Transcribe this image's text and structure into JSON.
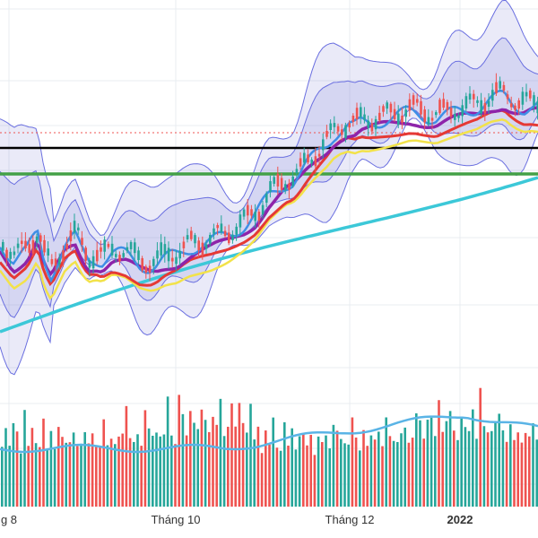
{
  "chart_data": {
    "type": "candlestick",
    "x_ticks": [
      {
        "label": "g 8",
        "bold": false
      },
      {
        "label": "Tháng 10",
        "bold": false
      },
      {
        "label": "Tháng 12",
        "bold": false
      },
      {
        "label": "2022",
        "bold": true
      }
    ],
    "grid": true,
    "colors": {
      "up": "#26a69a",
      "down": "#ef5350",
      "band_fill": "#7b7fd6",
      "band_line": "#6a6fe0",
      "ma_fast": "#3f8fe6",
      "ma_mid": "#8e24aa",
      "ma_slow": "#f2e24a",
      "ma_red": "#e53935",
      "ma_long": "#3cc8d8",
      "h_line_black": "#000000",
      "h_line_green": "#43a047",
      "h_line_dotted": "#ef5350",
      "volume_ma": "#5ab4e6"
    },
    "horizontal_levels": [
      {
        "name": "resistance",
        "style": "solid",
        "color": "black"
      },
      {
        "name": "support",
        "style": "solid",
        "color": "green"
      },
      {
        "name": "last-price",
        "style": "dotted",
        "color": "red"
      }
    ],
    "trend_path": [
      [
        0,
        280
      ],
      [
        8,
        300
      ],
      [
        16,
        290
      ],
      [
        22,
        270
      ],
      [
        26,
        300
      ],
      [
        30,
        315
      ],
      [
        34,
        300
      ],
      [
        38,
        285
      ],
      [
        44,
        275
      ],
      [
        48,
        290
      ],
      [
        52,
        300
      ],
      [
        56,
        298
      ],
      [
        60,
        300
      ],
      [
        63,
        296
      ],
      [
        66,
        292
      ],
      [
        70,
        293
      ],
      [
        74,
        295
      ],
      [
        78,
        300
      ],
      [
        82,
        305
      ],
      [
        88,
        307
      ],
      [
        92,
        305
      ],
      [
        96,
        300
      ],
      [
        100,
        297
      ],
      [
        104,
        295
      ],
      [
        108,
        290
      ],
      [
        112,
        286
      ],
      [
        116,
        284
      ],
      [
        120,
        282
      ],
      [
        124,
        280
      ],
      [
        128,
        277
      ],
      [
        132,
        274
      ],
      [
        136,
        270
      ],
      [
        140,
        265
      ],
      [
        144,
        260
      ],
      [
        150,
        250
      ],
      [
        154,
        240
      ],
      [
        158,
        230
      ],
      [
        164,
        220
      ],
      [
        168,
        214
      ],
      [
        172,
        212
      ],
      [
        176,
        205
      ],
      [
        180,
        195
      ],
      [
        186,
        182
      ],
      [
        192,
        170
      ],
      [
        196,
        160
      ],
      [
        200,
        154
      ],
      [
        205,
        150
      ],
      [
        208,
        152
      ],
      [
        212,
        148
      ],
      [
        216,
        148
      ],
      [
        220,
        146
      ],
      [
        224,
        144
      ],
      [
        228,
        142
      ],
      [
        232,
        140
      ],
      [
        236,
        138
      ],
      [
        240,
        136
      ],
      [
        244,
        136
      ],
      [
        248,
        138
      ],
      [
        252,
        140
      ],
      [
        256,
        142
      ],
      [
        260,
        140
      ],
      [
        264,
        138
      ],
      [
        268,
        136
      ],
      [
        272,
        134
      ],
      [
        276,
        132
      ],
      [
        280,
        130
      ],
      [
        284,
        126
      ],
      [
        288,
        122
      ],
      [
        292,
        120
      ],
      [
        296,
        118
      ],
      [
        300,
        124
      ],
      [
        304,
        128
      ],
      [
        308,
        130
      ],
      [
        312,
        128
      ],
      [
        316,
        128
      ]
    ],
    "volume_pattern": [
      0.3,
      0.45,
      0.35,
      0.55,
      0.4,
      0.3,
      0.62,
      0.38,
      0.48,
      0.33,
      0.41,
      0.58,
      0.36,
      0.44,
      0.29,
      0.52,
      0.39,
      0.47,
      0.34,
      0.61,
      0.42,
      0.37,
      0.49,
      0.31,
      0.56,
      0.43,
      0.35,
      0.64,
      0.4,
      0.46,
      0.32,
      0.54,
      0.38,
      0.71,
      0.45,
      0.36,
      0.5,
      0.41,
      0.79,
      0.47,
      0.39,
      0.66,
      0.52,
      0.44,
      0.88,
      0.57,
      0.49,
      0.95,
      0.61,
      0.53,
      1.0,
      0.58,
      0.47,
      0.72,
      0.55,
      0.43,
      0.68,
      0.5,
      0.84,
      0.6,
      0.46,
      0.74,
      0.54,
      0.92,
      0.63,
      0.51,
      0.77,
      0.57,
      0.45
    ]
  }
}
